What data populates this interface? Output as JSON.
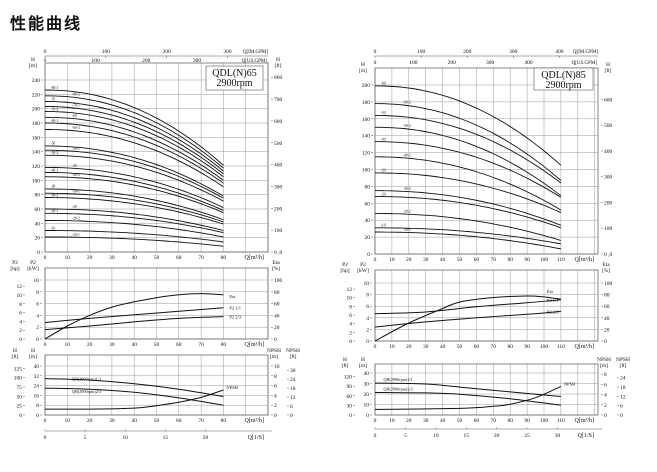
{
  "title": "性能曲线",
  "chart_data": [
    {
      "type": "line",
      "model": "QDL(N)65",
      "speed": "2900rpm",
      "flow_axes": {
        "im_gpm_label": "Q[IM.GPM]",
        "im_gpm_ticks": [
          0,
          100,
          200,
          300
        ],
        "us_gpm_label": "Q[US.GPM]",
        "us_gpm_ticks": [
          0,
          100,
          200,
          300
        ],
        "q_label": "Q[m³/h]",
        "q_ticks": [
          0,
          10,
          20,
          30,
          40,
          50,
          60,
          70,
          80
        ],
        "ls_label": "Q[1/S]",
        "ls_ticks": [
          0,
          5,
          10,
          15,
          20
        ]
      },
      "head_chart": {
        "y_label": "H",
        "y_unit": "[m]",
        "y_ticks": [
          0,
          20,
          40,
          60,
          80,
          100,
          120,
          140,
          160,
          180,
          200,
          220,
          240
        ],
        "y2_label": "H",
        "y2_unit": "[ft]",
        "y2_ticks": [
          0,
          100,
          200,
          300,
          400,
          500,
          600,
          700,
          800
        ],
        "y2_zero_label": "0 ,0",
        "q_end": 80,
        "curves": [
          {
            "label": "-80-1",
            "h": [
              226,
              121
            ]
          },
          {
            "label": "-80-2",
            "h": [
              218,
              117
            ]
          },
          {
            "label": "-70",
            "h": [
              210,
              113
            ]
          },
          {
            "label": "-70-1",
            "h": [
              203,
              109
            ]
          },
          {
            "label": "-70-2",
            "h": [
              196,
              105
            ]
          },
          {
            "label": "-60",
            "h": [
              188,
              100
            ]
          },
          {
            "label": "-60-1",
            "h": [
              180,
              96
            ]
          },
          {
            "label": "-60-2",
            "h": [
              171,
              91
            ]
          },
          {
            "label": "-50",
            "h": [
              148,
              78
            ]
          },
          {
            "label": "-50-1",
            "h": [
              142,
              75
            ]
          },
          {
            "label": "-50-2",
            "h": [
              135,
              71
            ]
          },
          {
            "label": "-40",
            "h": [
              118,
              62
            ]
          },
          {
            "label": "-40-1",
            "h": [
              111,
              58
            ]
          },
          {
            "label": "-40-2",
            "h": [
              105,
              55
            ]
          },
          {
            "label": "-30",
            "h": [
              88,
              45
            ]
          },
          {
            "label": "-30-1",
            "h": [
              82,
              42
            ]
          },
          {
            "label": "-30-2",
            "h": [
              76,
              39
            ]
          },
          {
            "label": "-20",
            "h": [
              60,
              30
            ]
          },
          {
            "label": "-20-1",
            "h": [
              54,
              27
            ]
          },
          {
            "label": "-20-2",
            "h": [
              44,
              21
            ]
          },
          {
            "label": "-10",
            "h": [
              30,
              14
            ]
          },
          {
            "label": "-10-1",
            "h": [
              21,
              8
            ]
          }
        ]
      },
      "power_chart": {
        "y_label": "P2",
        "y_unit": "[kW]",
        "y_ticks": [
          0,
          2,
          4,
          6,
          8,
          10
        ],
        "y_hp_label": "P2",
        "y_hp_unit": "[hp]",
        "y_hp_ticks": [
          0,
          2,
          4,
          6,
          8,
          10,
          12
        ],
        "y2_label": "Eta",
        "y2_unit": "[%]",
        "y2_ticks": [
          0,
          20,
          40,
          60,
          80,
          100
        ],
        "series": [
          {
            "name": "Eta",
            "axis": "eta",
            "points": [
              [
                0,
                0
              ],
              [
                10,
                22
              ],
              [
                20,
                40
              ],
              [
                30,
                54
              ],
              [
                40,
                63
              ],
              [
                50,
                70
              ],
              [
                60,
                75
              ],
              [
                70,
                77
              ],
              [
                80,
                75
              ]
            ]
          },
          {
            "name": "P2 1/1",
            "axis": "kw",
            "points": [
              [
                0,
                2.8
              ],
              [
                20,
                3.5
              ],
              [
                40,
                4.1
              ],
              [
                60,
                4.7
              ],
              [
                80,
                5.3
              ]
            ]
          },
          {
            "name": "P2 2/3",
            "axis": "kw",
            "points": [
              [
                0,
                1.6
              ],
              [
                20,
                2.2
              ],
              [
                40,
                2.9
              ],
              [
                60,
                3.5
              ],
              [
                80,
                3.8
              ]
            ]
          }
        ]
      },
      "npsh_chart": {
        "y_label": "H",
        "y_unit": "[m]",
        "y_ticks": [
          0,
          8,
          16,
          24,
          32,
          40
        ],
        "y_ft_label": "H",
        "y_ft_unit": "[ft]",
        "y_ft_ticks": [
          0,
          25,
          50,
          75,
          100,
          125
        ],
        "y2_label": "NPSH",
        "y2_unit": "[m]",
        "y2_ticks": [
          0,
          2,
          4,
          6,
          8,
          10
        ],
        "y3_label": "NPSH",
        "y3_unit": "[ft]",
        "y3_ticks": [
          0,
          6,
          12,
          18,
          24,
          30
        ],
        "series": [
          {
            "name": "QH(2900rpm)1/1",
            "axis": "h",
            "points": [
              [
                0,
                29.7
              ],
              [
                20,
                28.5
              ],
              [
                40,
                25.5
              ],
              [
                60,
                21
              ],
              [
                80,
                15
              ]
            ]
          },
          {
            "name": "QH(2900rpm)2/3",
            "axis": "h",
            "points": [
              [
                0,
                22
              ],
              [
                20,
                21
              ],
              [
                40,
                18.5
              ],
              [
                60,
                14
              ],
              [
                80,
                8
              ]
            ]
          },
          {
            "name": "NPSH",
            "axis": "npsh",
            "points": [
              [
                0,
                1.2
              ],
              [
                20,
                1.2
              ],
              [
                40,
                1.4
              ],
              [
                50,
                1.9
              ],
              [
                60,
                2.6
              ],
              [
                70,
                3.6
              ],
              [
                80,
                5.1
              ]
            ]
          }
        ]
      }
    },
    {
      "type": "line",
      "model": "QDL(N)85",
      "speed": "2900rpm",
      "flow_axes": {
        "im_gpm_label": "Q[IM.GPM]",
        "im_gpm_ticks": [
          0,
          100,
          200,
          300,
          400
        ],
        "us_gpm_label": "Q[US.GPM]",
        "us_gpm_ticks": [
          0,
          100,
          200,
          300,
          400
        ],
        "q_label": "Q[m³/h]",
        "q_ticks": [
          0,
          10,
          20,
          30,
          40,
          50,
          60,
          70,
          80,
          90,
          100,
          110
        ],
        "ls_label": "Q[1/S]",
        "ls_ticks": [
          0,
          5,
          10,
          15,
          20,
          25,
          30
        ]
      },
      "head_chart": {
        "y_label": "H",
        "y_unit": "[m]",
        "y_ticks": [
          0,
          20,
          40,
          60,
          80,
          100,
          120,
          140,
          160,
          180,
          200
        ],
        "y2_label": "H",
        "y2_unit": "[ft]",
        "y2_ticks": [
          0,
          100,
          200,
          300,
          400,
          500,
          600
        ],
        "y2_zero_label": "0 ,0",
        "q_end": 110,
        "curves": [
          {
            "label": "-60",
            "h": [
              199,
              105
            ]
          },
          {
            "label": "-60-2",
            "h": [
              178,
              87
            ]
          },
          {
            "label": "-50",
            "h": [
              164,
              84
            ]
          },
          {
            "label": "-50-2",
            "h": [
              150,
              69
            ]
          },
          {
            "label": "-40",
            "h": [
              133,
              67
            ]
          },
          {
            "label": "-40-2",
            "h": [
              115,
              52
            ]
          },
          {
            "label": "-30",
            "h": [
              96,
              49
            ]
          },
          {
            "label": "-30-2",
            "h": [
              75,
              34
            ]
          },
          {
            "label": "-20",
            "h": [
              68,
              31
            ]
          },
          {
            "label": "-20-2",
            "h": [
              48,
              16
            ]
          },
          {
            "label": "-10",
            "h": [
              31,
              12
            ]
          },
          {
            "label": "-10-1",
            "h": [
              26,
              6
            ]
          }
        ]
      },
      "power_chart": {
        "y_label": "P2",
        "y_unit": "[kW]",
        "y_ticks": [
          0,
          2,
          4,
          6,
          8,
          10
        ],
        "y_hp_label": "P2",
        "y_hp_unit": "[hp]",
        "y_hp_ticks": [
          0,
          2,
          4,
          6,
          8,
          10,
          12
        ],
        "y2_label": "Eta",
        "y2_unit": "[%]",
        "y2_ticks": [
          0,
          20,
          40,
          60,
          80,
          100
        ],
        "series": [
          {
            "name": "Eta",
            "axis": "eta",
            "points": [
              [
                0,
                0
              ],
              [
                20,
                31
              ],
              [
                40,
                56
              ],
              [
                50,
                67
              ],
              [
                70,
                75
              ],
              [
                90,
                77.6
              ],
              [
                100,
                76
              ],
              [
                110,
                72
              ]
            ]
          },
          {
            "name": "P2 1/1",
            "axis": "kw",
            "points": [
              [
                0,
                4.7
              ],
              [
                30,
                5.0
              ],
              [
                60,
                5.9
              ],
              [
                90,
                6.6
              ],
              [
                110,
                7.1
              ]
            ]
          },
          {
            "name": "P2 2/3",
            "axis": "kw",
            "points": [
              [
                0,
                2.4
              ],
              [
                30,
                3.3
              ],
              [
                60,
                4.0
              ],
              [
                90,
                4.6
              ],
              [
                110,
                5.1
              ]
            ]
          }
        ]
      },
      "npsh_chart": {
        "y_label": "H",
        "y_unit": "[m]",
        "y_ticks": [
          0,
          10,
          20,
          30,
          40
        ],
        "y_ft_label": "H",
        "y_ft_unit": "[ft]",
        "y_ft_ticks": [
          0,
          30,
          60,
          90,
          120
        ],
        "y2_label": "NPSH",
        "y2_unit": "[m]",
        "y2_ticks": [
          0,
          2,
          4,
          6,
          8
        ],
        "y3_label": "NPSH",
        "y3_unit": "[ft]",
        "y3_ticks": [
          0,
          6,
          12,
          18,
          24
        ],
        "series": [
          {
            "name": "QH(2900rpm)1/1",
            "axis": "h",
            "points": [
              [
                0,
                30.4
              ],
              [
                30,
                29.5
              ],
              [
                50,
                26.6
              ],
              [
                80,
                22
              ],
              [
                110,
                17.6
              ]
            ]
          },
          {
            "name": "QH(2900rpm)2/3",
            "axis": "h",
            "points": [
              [
                0,
                21.4
              ],
              [
                30,
                21
              ],
              [
                50,
                19.8
              ],
              [
                80,
                15.5
              ],
              [
                110,
                9.3
              ]
            ]
          },
          {
            "name": "NPSH",
            "axis": "npsh",
            "points": [
              [
                0,
                1.1
              ],
              [
                50,
                1.3
              ],
              [
                70,
                1.7
              ],
              [
                80,
                2.1
              ],
              [
                95,
                3.4
              ],
              [
                110,
                5.6
              ]
            ]
          }
        ]
      }
    }
  ]
}
